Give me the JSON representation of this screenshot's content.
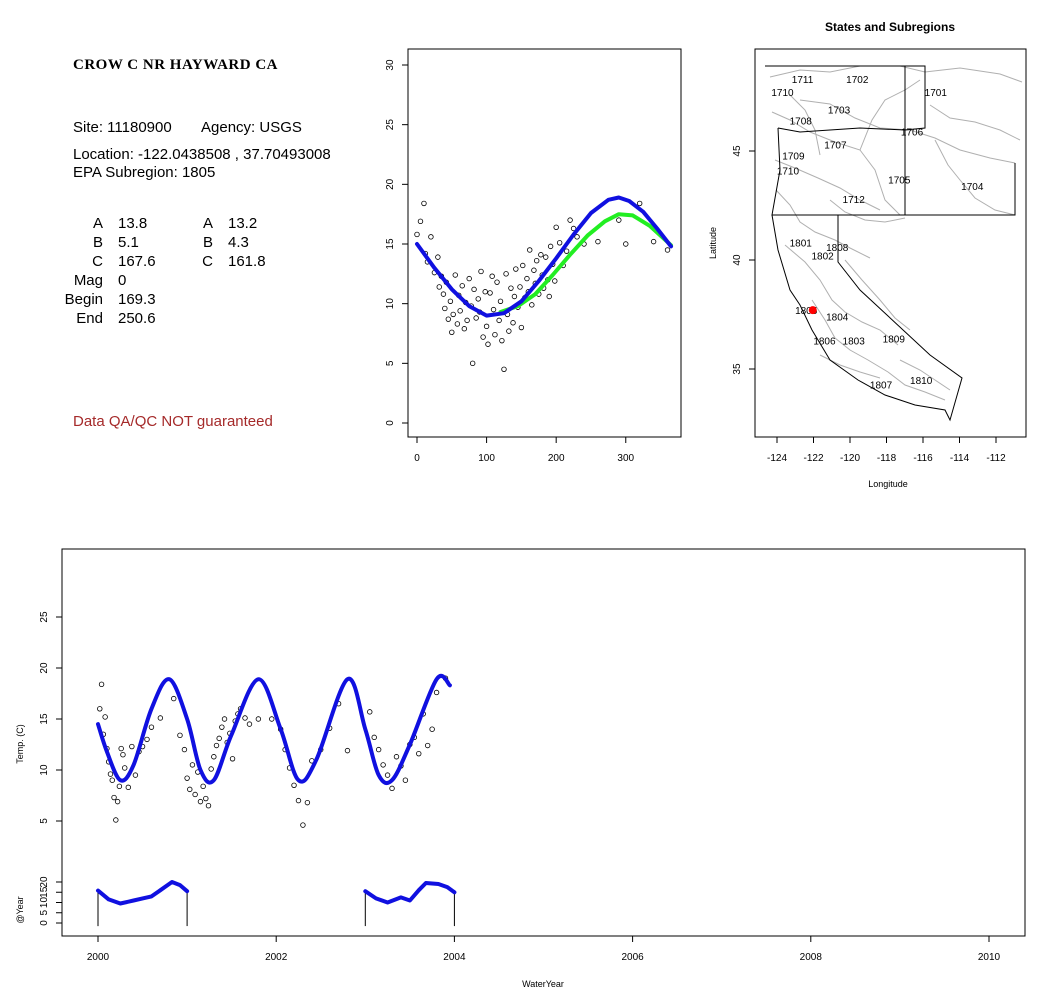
{
  "site": {
    "title": "CROW C NR HAYWARD CA",
    "site_label": "Site: 11180900",
    "agency_label": "Agency: USGS",
    "location_label": "Location: -122.0438508 , 37.70493008",
    "subregion_label": "EPA Subregion: 1805",
    "qa_note": "Data QA/QC NOT guaranteed"
  },
  "params": {
    "left": [
      {
        "label": "A",
        "value": "13.8"
      },
      {
        "label": "B",
        "value": "5.1"
      },
      {
        "label": "C",
        "value": "167.6"
      },
      {
        "label": "Mag",
        "value": "0"
      },
      {
        "label": "Begin",
        "value": "169.3"
      },
      {
        "label": "End",
        "value": "250.6"
      }
    ],
    "right": [
      {
        "label": "A",
        "value": "13.2"
      },
      {
        "label": "B",
        "value": "4.3"
      },
      {
        "label": "C",
        "value": "161.8"
      }
    ]
  },
  "colors": {
    "fit_blue": "#1010e0",
    "fit_green": "#22ee22",
    "qa_red": "#a52a2a",
    "site_marker": "#ff0000",
    "boundary_gray": "#b0b0b0"
  },
  "chart_data": [
    {
      "type": "scatter",
      "title": "",
      "xlabel": "",
      "ylabel": "",
      "xlim": [
        0,
        365
      ],
      "ylim": [
        0,
        30
      ],
      "x_ticks": [
        "0",
        "100",
        "200",
        "300"
      ],
      "y_ticks": [
        "0",
        "5",
        "10",
        "15",
        "20",
        "25",
        "30"
      ],
      "series": [
        {
          "kind": "points",
          "x": [
            0,
            5,
            10,
            12,
            15,
            20,
            25,
            30,
            32,
            35,
            38,
            40,
            42,
            45,
            48,
            50,
            52,
            55,
            58,
            60,
            62,
            65,
            68,
            70,
            72,
            75,
            78,
            80,
            82,
            85,
            88,
            90,
            92,
            95,
            98,
            100,
            102,
            105,
            108,
            110,
            112,
            115,
            118,
            120,
            122,
            125,
            128,
            130,
            132,
            135,
            138,
            140,
            142,
            145,
            148,
            150,
            152,
            155,
            158,
            160,
            162,
            165,
            168,
            170,
            172,
            175,
            178,
            180,
            182,
            185,
            188,
            190,
            192,
            195,
            198,
            200,
            205,
            210,
            215,
            220,
            225,
            230,
            240,
            260,
            290,
            300,
            320,
            340,
            360
          ],
          "y": [
            15.8,
            16.9,
            18.4,
            14.2,
            13.5,
            15.6,
            12.6,
            13.9,
            11.4,
            12.3,
            10.8,
            9.6,
            11.8,
            8.7,
            10.2,
            7.6,
            9.1,
            12.4,
            8.3,
            10.7,
            9.4,
            11.5,
            7.9,
            10.1,
            8.6,
            12.1,
            9.8,
            5.0,
            11.2,
            8.8,
            10.4,
            9.3,
            12.7,
            7.2,
            11.0,
            8.1,
            6.6,
            10.9,
            12.3,
            9.5,
            7.4,
            11.8,
            8.6,
            10.2,
            6.9,
            4.5,
            12.5,
            9.1,
            7.7,
            11.3,
            8.4,
            10.6,
            12.9,
            9.7,
            11.4,
            8.0,
            13.2,
            10.5,
            12.1,
            11.0,
            14.5,
            9.9,
            12.8,
            11.7,
            13.6,
            10.8,
            14.1,
            12.4,
            11.3,
            13.9,
            12.0,
            10.6,
            14.8,
            13.3,
            11.9,
            16.4,
            15.1,
            13.2,
            14.4,
            17.0,
            16.3,
            15.6,
            15.0,
            15.2,
            17.0,
            15.0,
            18.4,
            15.2,
            14.5
          ]
        },
        {
          "kind": "line",
          "name": "",
          "color": "#1010e0",
          "x": [
            0,
            25,
            50,
            75,
            100,
            125,
            150,
            175,
            200,
            225,
            250,
            275,
            290,
            305,
            325,
            345,
            365
          ],
          "y": [
            15.0,
            13.0,
            11.2,
            9.8,
            9.0,
            9.2,
            10.2,
            11.9,
            13.8,
            15.8,
            17.6,
            18.7,
            18.9,
            18.6,
            17.7,
            16.3,
            14.8
          ]
        },
        {
          "kind": "line",
          "name": "",
          "color": "#22ee22",
          "x": [
            120,
            145,
            170,
            195,
            220,
            245,
            270,
            290,
            310,
            335,
            365
          ],
          "y": [
            9.3,
            9.8,
            10.8,
            12.4,
            14.1,
            15.7,
            16.9,
            17.5,
            17.4,
            16.5,
            14.9
          ]
        }
      ]
    },
    {
      "type": "map",
      "title": "States and Subregions",
      "xlabel": "Longitude",
      "ylabel": "Latitude",
      "xlim": [
        -125.5,
        -110
      ],
      "ylim": [
        32,
        49.5
      ],
      "x_ticks": [
        "-124",
        "-122",
        "-120",
        "-118",
        "-116",
        "-114",
        "-112"
      ],
      "y_ticks": [
        "35",
        "40",
        "45"
      ],
      "regions": [
        {
          "label": "1711",
          "lon": -122.6,
          "lat": 48.3
        },
        {
          "label": "1702",
          "lon": -119.6,
          "lat": 48.3
        },
        {
          "label": "1701",
          "lon": -115.3,
          "lat": 47.7
        },
        {
          "label": "1710",
          "lon": -123.7,
          "lat": 47.7
        },
        {
          "label": "1703",
          "lon": -120.6,
          "lat": 46.9
        },
        {
          "label": "1708",
          "lon": -122.7,
          "lat": 46.4
        },
        {
          "label": "1706",
          "lon": -116.6,
          "lat": 45.9
        },
        {
          "label": "1707",
          "lon": -120.8,
          "lat": 45.3
        },
        {
          "label": "1709",
          "lon": -123.1,
          "lat": 44.8
        },
        {
          "label": "1710",
          "lon": -123.4,
          "lat": 44.1
        },
        {
          "label": "1705",
          "lon": -117.3,
          "lat": 43.7
        },
        {
          "label": "1704",
          "lon": -113.3,
          "lat": 43.4
        },
        {
          "label": "1712",
          "lon": -119.8,
          "lat": 42.8
        },
        {
          "label": "1801",
          "lon": -122.7,
          "lat": 40.8
        },
        {
          "label": "1808",
          "lon": -120.7,
          "lat": 40.6
        },
        {
          "label": "1802",
          "lon": -121.5,
          "lat": 40.2
        },
        {
          "label": "1805",
          "lon": -122.4,
          "lat": 37.7
        },
        {
          "label": "1804",
          "lon": -120.7,
          "lat": 37.4
        },
        {
          "label": "1806",
          "lon": -121.4,
          "lat": 36.3
        },
        {
          "label": "1803",
          "lon": -119.8,
          "lat": 36.3
        },
        {
          "label": "1809",
          "lon": -117.6,
          "lat": 36.4
        },
        {
          "label": "1807",
          "lon": -118.3,
          "lat": 34.3
        },
        {
          "label": "1810",
          "lon": -116.1,
          "lat": 34.5
        }
      ],
      "site_marker": {
        "lon": -122.04,
        "lat": 37.7
      }
    },
    {
      "type": "scatter",
      "title": "",
      "xlabel": "WaterYear",
      "ylabel": "Temp. (C)",
      "xlim": [
        2000,
        2010.4
      ],
      "ylim": [
        1,
        30
      ],
      "x_ticks": [
        "2000",
        "2002",
        "2004",
        "2006",
        "2008",
        "2010"
      ],
      "y_ticks": [
        "5",
        "10",
        "15",
        "20",
        "25"
      ],
      "series": [
        {
          "kind": "points",
          "x": [
            2000.02,
            2000.04,
            2000.06,
            2000.08,
            2000.1,
            2000.12,
            2000.14,
            2000.16,
            2000.18,
            2000.2,
            2000.22,
            2000.24,
            2000.26,
            2000.28,
            2000.3,
            2000.34,
            2000.38,
            2000.42,
            2000.46,
            2000.5,
            2000.55,
            2000.6,
            2000.7,
            2000.85,
            2000.92,
            2000.97,
            2001.0,
            2001.03,
            2001.06,
            2001.09,
            2001.12,
            2001.15,
            2001.18,
            2001.21,
            2001.24,
            2001.27,
            2001.3,
            2001.33,
            2001.36,
            2001.39,
            2001.42,
            2001.45,
            2001.48,
            2001.51,
            2001.54,
            2001.57,
            2001.6,
            2001.65,
            2001.7,
            2001.8,
            2001.95,
            2002.05,
            2002.1,
            2002.15,
            2002.2,
            2002.25,
            2002.3,
            2002.35,
            2002.4,
            2002.5,
            2002.6,
            2002.7,
            2002.8,
            2003.05,
            2003.1,
            2003.15,
            2003.2,
            2003.25,
            2003.3,
            2003.35,
            2003.4,
            2003.45,
            2003.5,
            2003.55,
            2003.6,
            2003.65,
            2003.7,
            2003.75,
            2003.8,
            2003.9
          ],
          "y": [
            16.0,
            18.4,
            13.5,
            15.2,
            12.1,
            10.8,
            9.6,
            9.0,
            7.3,
            5.1,
            6.9,
            8.4,
            12.1,
            11.5,
            10.2,
            8.3,
            12.3,
            9.5,
            11.8,
            12.3,
            13.0,
            14.2,
            15.1,
            17.0,
            13.4,
            12.0,
            9.2,
            8.1,
            10.5,
            7.6,
            9.8,
            6.9,
            8.4,
            7.2,
            6.5,
            10.1,
            11.3,
            12.4,
            13.1,
            14.2,
            15.0,
            12.7,
            13.6,
            11.1,
            14.8,
            15.5,
            16.0,
            15.1,
            14.5,
            15.0,
            15.0,
            14.0,
            12.0,
            10.2,
            8.5,
            7.0,
            4.6,
            6.8,
            10.9,
            12.0,
            14.1,
            16.5,
            11.9,
            15.7,
            13.2,
            12.0,
            10.5,
            9.5,
            8.2,
            11.3,
            10.4,
            9.0,
            12.5,
            13.2,
            11.6,
            15.5,
            12.4,
            14.0,
            17.6,
            19.0
          ]
        },
        {
          "kind": "line",
          "name": "",
          "color": "#1010e0",
          "x": [
            2000,
            2000.1,
            2000.25,
            2000.4,
            2000.6,
            2000.8,
            2001.0,
            2001.15,
            2001.3,
            2001.5,
            2001.8,
            2002.05,
            2002.25,
            2002.45,
            2002.8,
            2003.0,
            2003.15,
            2003.3,
            2003.5,
            2003.8,
            2003.95
          ],
          "y": [
            14.5,
            11.8,
            9.0,
            10.5,
            16.0,
            18.9,
            15.0,
            10.0,
            9.0,
            13.5,
            18.9,
            14.0,
            9.0,
            11.0,
            18.9,
            14.0,
            9.5,
            9.0,
            12.5,
            18.9,
            18.3
          ]
        }
      ]
    },
    {
      "type": "line",
      "title": "",
      "xlabel": "",
      "ylabel": "@Year",
      "xlim": [
        2000,
        2010.4
      ],
      "ylim": [
        -3,
        24
      ],
      "y_ticks": [
        "0",
        "5",
        "10",
        "15",
        "20"
      ],
      "series": [
        {
          "kind": "line",
          "name": "",
          "color": "#1010e0",
          "x": [
            2000.0,
            2000.12,
            2000.25,
            2000.4,
            2000.5,
            2000.6,
            2000.7,
            2000.83,
            2000.92,
            2001.0
          ],
          "y": [
            15.8,
            11.5,
            9.5,
            11.0,
            12.0,
            13.0,
            16.0,
            20.0,
            18.5,
            15.5
          ]
        },
        {
          "kind": "line",
          "name": "",
          "color": "#1010e0",
          "x": [
            2003.0,
            2003.12,
            2003.25,
            2003.4,
            2003.5,
            2003.6,
            2003.68,
            2003.82,
            2003.92,
            2004.0
          ],
          "y": [
            15.5,
            12.0,
            10.0,
            12.5,
            11.0,
            16.0,
            19.5,
            19.0,
            17.5,
            15.0
          ]
        }
      ],
      "year_bars": [
        2000.0,
        2001.0,
        2003.0,
        2004.0
      ]
    }
  ]
}
